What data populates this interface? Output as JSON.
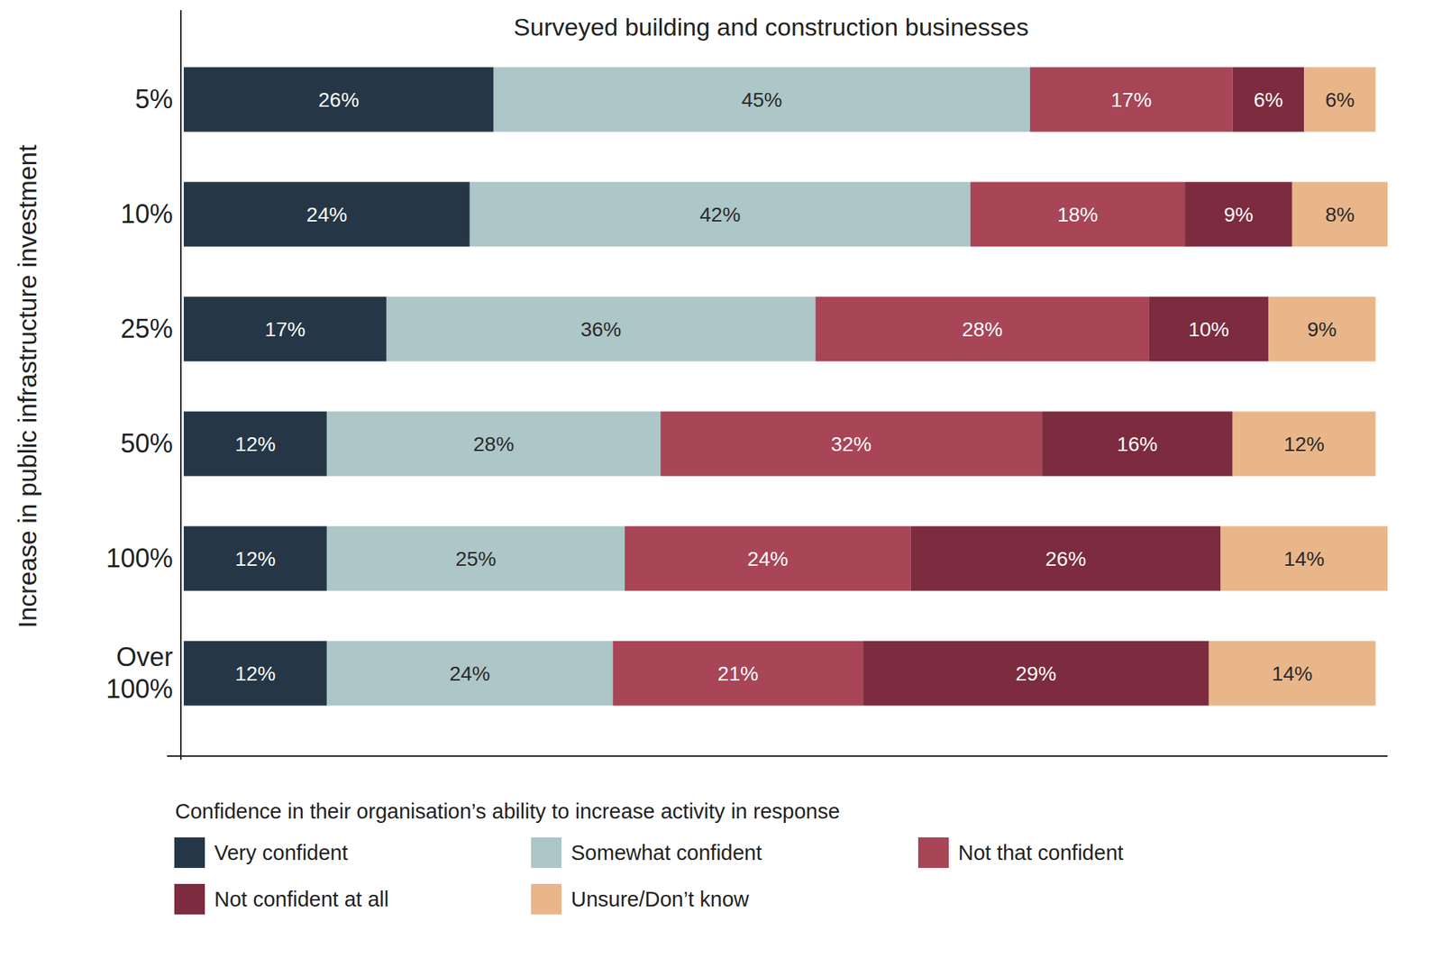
{
  "chart_data": {
    "type": "bar",
    "orientation": "horizontal",
    "stacked": true,
    "data_labels": true,
    "tick_labels": "y",
    "grid": false,
    "legend": "bottom",
    "title": "Surveyed building and construction businesses",
    "y_label": "Increase in public infrastructure investment",
    "legend_title": "Confidence in their organisation’s ability to increase activity in response",
    "categories": [
      "5%",
      "10%",
      "25%",
      "50%",
      "100%",
      "Over 100%"
    ],
    "xlim": [
      0,
      101
    ],
    "series": [
      {
        "name": "Very confident",
        "color": "#253746",
        "values": [
          26,
          24,
          17,
          12,
          12,
          12
        ],
        "value_labels": [
          "26%",
          "24%",
          "17%",
          "12%",
          "12%",
          "12%"
        ]
      },
      {
        "name": "Somewhat confident",
        "color": "#adc6c8",
        "values": [
          45,
          42,
          36,
          28,
          25,
          24
        ],
        "value_labels": [
          "45%",
          "42%",
          "36%",
          "28%",
          "25%",
          "24%"
        ]
      },
      {
        "name": "Not that confident",
        "color": "#a84557",
        "values": [
          17,
          18,
          28,
          32,
          24,
          21
        ],
        "value_labels": [
          "17%",
          "18%",
          "28%",
          "32%",
          "24%",
          "21%"
        ]
      },
      {
        "name": "Not confident at all",
        "color": "#7d2b3e",
        "values": [
          6,
          9,
          10,
          16,
          26,
          29
        ],
        "value_labels": [
          "6%",
          "9%",
          "10%",
          "16%",
          "26%",
          "29%"
        ]
      },
      {
        "name": "Unsure/Don’t know",
        "color": "#e8b689",
        "values": [
          6,
          8,
          9,
          12,
          14,
          14
        ],
        "value_labels": [
          "6%",
          "8%",
          "9%",
          "12%",
          "14%",
          "14%"
        ]
      }
    ]
  }
}
